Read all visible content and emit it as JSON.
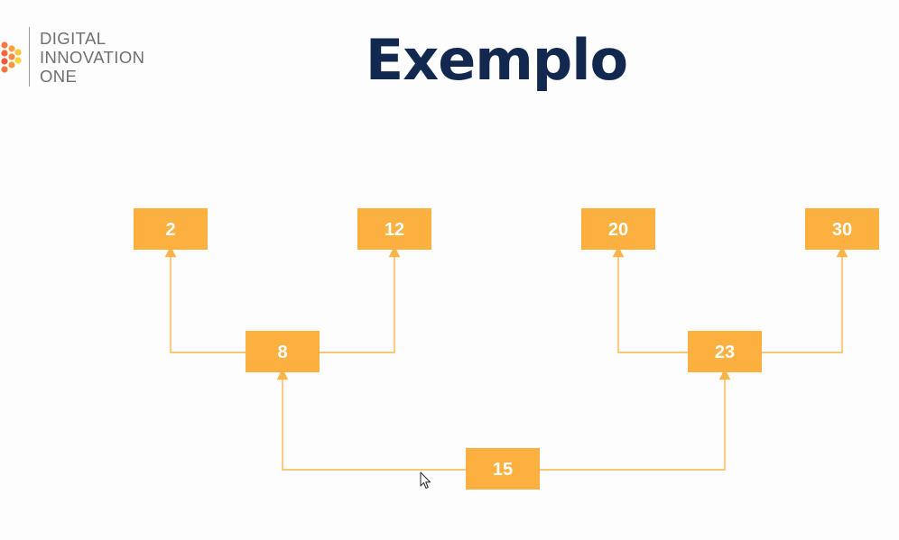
{
  "logo": {
    "lines": [
      "DIGITAL",
      "INNOVATION",
      "ONE"
    ]
  },
  "title": "Exemplo",
  "colors": {
    "node_fill": "#fbb040",
    "edge": "#f9b54a",
    "title": "#13284f"
  },
  "tree": {
    "nodes": [
      {
        "id": "n2",
        "label": "2"
      },
      {
        "id": "n12",
        "label": "12"
      },
      {
        "id": "n20",
        "label": "20"
      },
      {
        "id": "n30",
        "label": "30"
      },
      {
        "id": "n8",
        "label": "8"
      },
      {
        "id": "n23",
        "label": "23"
      },
      {
        "id": "n15",
        "label": "15"
      }
    ],
    "edges": [
      {
        "from": "n15",
        "to": "n8"
      },
      {
        "from": "n15",
        "to": "n23"
      },
      {
        "from": "n8",
        "to": "n2"
      },
      {
        "from": "n8",
        "to": "n12"
      },
      {
        "from": "n23",
        "to": "n20"
      },
      {
        "from": "n23",
        "to": "n30"
      }
    ]
  }
}
